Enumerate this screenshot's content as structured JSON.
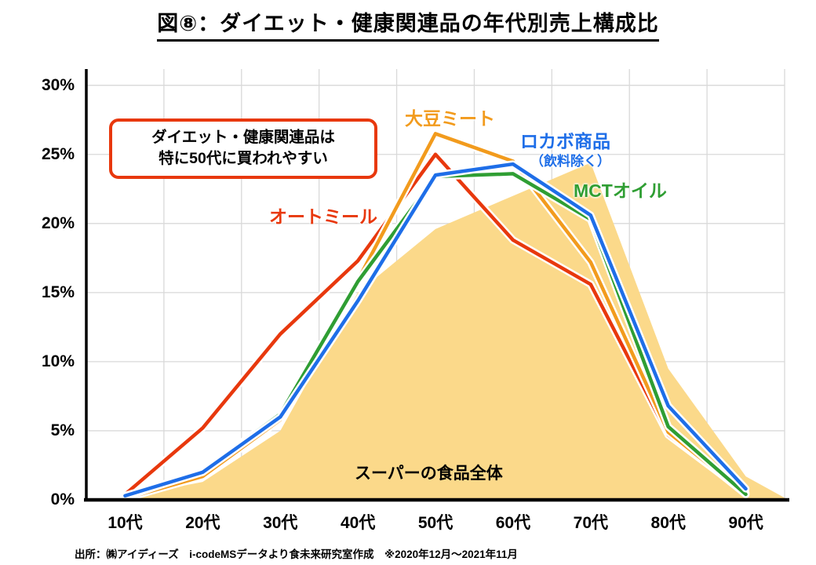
{
  "title": "図⑧：ダイエット・健康関連品の年代別売上構成比",
  "annotation": {
    "line1": "ダイエット・健康関連品は",
    "line2": "特に50代に買われやすい",
    "border_color": "#e8380d"
  },
  "source": "出所：㈱アイディーズ　i-codeMSデータより食未来研究室作成　※2020年12月～2021年11月",
  "chart_data": {
    "type": "line",
    "title": "図⑧：ダイエット・健康関連品の年代別売上構成比",
    "categories": [
      "10代",
      "20代",
      "30代",
      "40代",
      "50代",
      "60代",
      "70代",
      "80代",
      "90代"
    ],
    "y_ticks": [
      "0%",
      "5%",
      "10%",
      "15%",
      "20%",
      "25%",
      "30%"
    ],
    "ylim": [
      0,
      30
    ],
    "grid": true,
    "legend_position": "labels-on-chart",
    "grid_color": "#d9d9d9",
    "axis_color": "#000000",
    "area_series": {
      "name": "スーパーの食品全体",
      "color": "#fbd98a",
      "values": [
        0.2,
        1.3,
        5.0,
        15.0,
        19.6,
        22.0,
        24.4,
        9.5,
        1.7
      ]
    },
    "series": [
      {
        "name": "オートミール",
        "color": "#e8380d",
        "values": [
          0.4,
          5.2,
          12.0,
          17.3,
          25.0,
          18.8,
          15.6,
          4.7,
          0.5
        ]
      },
      {
        "name": "大豆ミート",
        "color": "#f29b1d",
        "values": [
          0.1,
          1.7,
          5.8,
          15.9,
          26.5,
          24.5,
          17.2,
          4.9,
          0.4
        ]
      },
      {
        "name": "MCTオイル",
        "color": "#2f9e33",
        "values": [
          0.2,
          2.1,
          6.2,
          15.8,
          23.4,
          23.6,
          20.3,
          5.3,
          0.4
        ]
      },
      {
        "name": "ロカボ商品",
        "sublabel": "（飲料除く）",
        "color": "#1e6ee8",
        "values": [
          0.3,
          2.0,
          6.0,
          14.4,
          23.5,
          24.3,
          20.6,
          6.8,
          0.8
        ]
      }
    ]
  }
}
